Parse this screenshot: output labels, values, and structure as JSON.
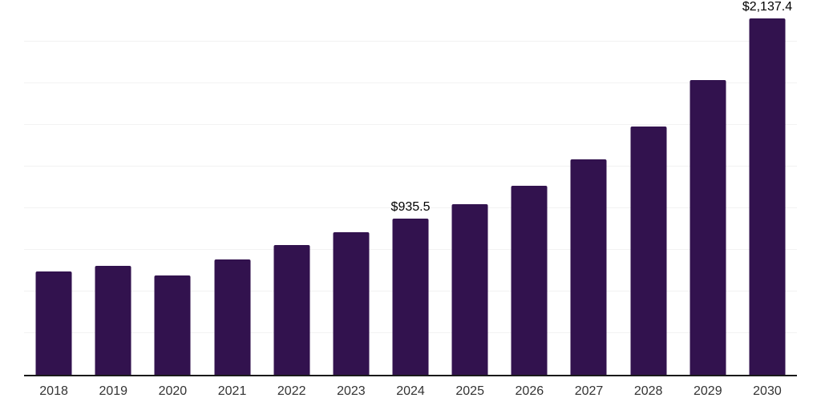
{
  "chart_data": {
    "type": "bar",
    "categories": [
      "2018",
      "2019",
      "2020",
      "2021",
      "2022",
      "2023",
      "2024",
      "2025",
      "2026",
      "2027",
      "2028",
      "2029",
      "2030"
    ],
    "values": [
      618,
      656,
      594,
      693,
      779,
      858,
      935.5,
      1026,
      1136,
      1293,
      1492,
      1767,
      2137.4
    ],
    "data_labels": [
      "",
      "",
      "",
      "",
      "",
      "",
      "$935.5",
      "",
      "",
      "",
      "",
      "",
      "$2,137.4"
    ],
    "xlabel": "",
    "ylabel": "",
    "ylim": [
      0,
      2250
    ],
    "grid_step": 250,
    "grid": "horizontal",
    "legend": false,
    "colors": {
      "bar": "#32124E",
      "grid": "#F2F2F2",
      "axis": "#1A1A1A",
      "data_label": "#000000",
      "tick_label": "#333333",
      "background": "#FFFFFF"
    }
  }
}
